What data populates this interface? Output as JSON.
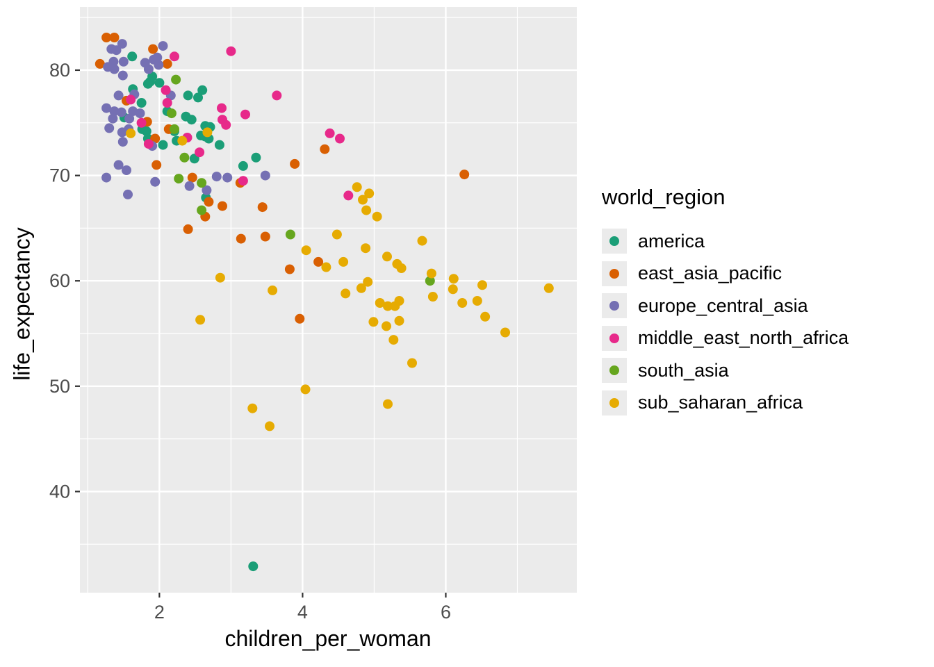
{
  "figure": {
    "background": "#FFFFFF",
    "panel_background": "#EBEBEB",
    "grid_color": "#FFFFFF",
    "tick_mark_color": "#333333",
    "tick_label_color": "#4D4D4D",
    "axis_title_color": "#000000",
    "legend_key_background": "#EBEBEB"
  },
  "chart_data": {
    "type": "scatter",
    "title": "",
    "xlabel": "children_per_woman",
    "ylabel": "life_expectancy",
    "x_ticks": [
      2,
      4,
      6
    ],
    "y_ticks": [
      80,
      70,
      60,
      50,
      40
    ],
    "x_minor_ticks": [
      1,
      3,
      5,
      7
    ],
    "y_minor_ticks": [
      85,
      75,
      65,
      55,
      45,
      35
    ],
    "xlim": [
      0.89,
      7.83
    ],
    "ylim": [
      30.4,
      86.0
    ],
    "grid": true,
    "point_radius_px": 7,
    "legend": {
      "title": "world_region",
      "position": "right"
    },
    "series": [
      {
        "name": "america",
        "color": "#1B9E77",
        "points": [
          [
            1.62,
            81.3
          ],
          [
            1.9,
            79.4
          ],
          [
            1.87,
            78.9
          ],
          [
            1.84,
            78.7
          ],
          [
            2.0,
            78.8
          ],
          [
            1.63,
            78.2
          ],
          [
            2.4,
            77.6
          ],
          [
            2.54,
            77.4
          ],
          [
            2.6,
            78.1
          ],
          [
            1.75,
            76.9
          ],
          [
            2.11,
            76.1
          ],
          [
            2.37,
            75.6
          ],
          [
            2.45,
            75.3
          ],
          [
            1.51,
            75.5
          ],
          [
            1.76,
            74.4
          ],
          [
            1.82,
            74.2
          ],
          [
            1.84,
            73.5
          ],
          [
            2.05,
            72.9
          ],
          [
            2.21,
            74.2
          ],
          [
            2.24,
            73.3
          ],
          [
            2.58,
            73.8
          ],
          [
            2.64,
            73.7
          ],
          [
            2.64,
            74.7
          ],
          [
            2.71,
            74.6
          ],
          [
            2.69,
            73.5
          ],
          [
            2.84,
            72.9
          ],
          [
            3.35,
            71.7
          ],
          [
            3.17,
            70.9
          ],
          [
            2.49,
            71.6
          ],
          [
            2.65,
            67.9
          ],
          [
            3.31,
            32.9
          ]
        ]
      },
      {
        "name": "east_asia_pacific",
        "color": "#D95F02",
        "points": [
          [
            1.26,
            83.1
          ],
          [
            1.37,
            83.1
          ],
          [
            1.17,
            80.6
          ],
          [
            1.91,
            82.0
          ],
          [
            2.11,
            80.6
          ],
          [
            1.54,
            77.1
          ],
          [
            1.83,
            75.1
          ],
          [
            2.13,
            74.4
          ],
          [
            1.94,
            73.5
          ],
          [
            1.96,
            71.0
          ],
          [
            2.46,
            69.8
          ],
          [
            3.13,
            69.3
          ],
          [
            2.69,
            67.5
          ],
          [
            2.88,
            67.1
          ],
          [
            3.44,
            67.0
          ],
          [
            2.64,
            66.1
          ],
          [
            2.4,
            64.9
          ],
          [
            3.14,
            64.0
          ],
          [
            3.48,
            64.2
          ],
          [
            3.82,
            61.1
          ],
          [
            4.22,
            61.8
          ],
          [
            3.89,
            71.1
          ],
          [
            4.31,
            72.5
          ],
          [
            6.26,
            70.1
          ],
          [
            3.96,
            56.4
          ]
        ]
      },
      {
        "name": "europe_central_asia",
        "color": "#7570B3",
        "points": [
          [
            1.48,
            82.5
          ],
          [
            1.33,
            82.0
          ],
          [
            1.4,
            81.9
          ],
          [
            2.05,
            82.3
          ],
          [
            1.97,
            81.2
          ],
          [
            1.92,
            81.0
          ],
          [
            1.36,
            80.8
          ],
          [
            1.5,
            80.8
          ],
          [
            1.28,
            80.3
          ],
          [
            1.37,
            80.1
          ],
          [
            1.8,
            80.7
          ],
          [
            1.85,
            80.1
          ],
          [
            1.99,
            80.5
          ],
          [
            1.49,
            79.5
          ],
          [
            1.43,
            77.6
          ],
          [
            1.65,
            77.7
          ],
          [
            2.16,
            77.6
          ],
          [
            1.26,
            76.4
          ],
          [
            1.37,
            76.1
          ],
          [
            1.47,
            76.0
          ],
          [
            1.63,
            76.1
          ],
          [
            1.35,
            75.4
          ],
          [
            1.58,
            75.4
          ],
          [
            1.73,
            75.9
          ],
          [
            1.3,
            74.5
          ],
          [
            1.48,
            74.1
          ],
          [
            1.57,
            74.4
          ],
          [
            1.49,
            73.2
          ],
          [
            1.9,
            72.8
          ],
          [
            1.43,
            71.0
          ],
          [
            1.54,
            70.5
          ],
          [
            1.26,
            69.8
          ],
          [
            1.94,
            69.4
          ],
          [
            2.42,
            69.0
          ],
          [
            2.66,
            68.6
          ],
          [
            1.56,
            68.2
          ],
          [
            2.8,
            69.9
          ],
          [
            2.95,
            69.8
          ],
          [
            3.48,
            70.0
          ]
        ]
      },
      {
        "name": "middle_east_north_africa",
        "color": "#E7298A",
        "points": [
          [
            2.21,
            81.3
          ],
          [
            3.0,
            81.8
          ],
          [
            2.09,
            78.1
          ],
          [
            1.6,
            77.2
          ],
          [
            2.11,
            76.9
          ],
          [
            3.64,
            77.6
          ],
          [
            2.87,
            76.4
          ],
          [
            3.2,
            75.8
          ],
          [
            2.88,
            75.3
          ],
          [
            2.93,
            74.8
          ],
          [
            2.39,
            73.6
          ],
          [
            2.56,
            72.2
          ],
          [
            1.75,
            75.0
          ],
          [
            4.38,
            74.0
          ],
          [
            4.52,
            73.5
          ],
          [
            3.17,
            69.5
          ],
          [
            1.85,
            73.0
          ],
          [
            4.64,
            68.1
          ]
        ]
      },
      {
        "name": "south_asia",
        "color": "#66A61E",
        "points": [
          [
            2.23,
            79.1
          ],
          [
            2.17,
            75.9
          ],
          [
            2.21,
            74.4
          ],
          [
            2.35,
            71.7
          ],
          [
            2.27,
            69.7
          ],
          [
            2.59,
            69.3
          ],
          [
            2.59,
            66.7
          ],
          [
            3.83,
            64.4
          ],
          [
            5.78,
            60.0
          ]
        ]
      },
      {
        "name": "sub_saharan_africa",
        "color": "#E6AB02",
        "points": [
          [
            1.6,
            74.0
          ],
          [
            2.32,
            73.3
          ],
          [
            2.67,
            74.1
          ],
          [
            2.85,
            60.3
          ],
          [
            2.57,
            56.3
          ],
          [
            4.76,
            68.9
          ],
          [
            4.93,
            68.3
          ],
          [
            4.84,
            67.7
          ],
          [
            4.89,
            66.7
          ],
          [
            5.04,
            66.1
          ],
          [
            4.48,
            64.4
          ],
          [
            4.05,
            62.9
          ],
          [
            4.33,
            61.3
          ],
          [
            4.57,
            61.8
          ],
          [
            4.88,
            63.1
          ],
          [
            5.67,
            63.8
          ],
          [
            5.18,
            62.3
          ],
          [
            5.32,
            61.6
          ],
          [
            5.38,
            61.2
          ],
          [
            4.91,
            59.9
          ],
          [
            4.82,
            59.3
          ],
          [
            4.6,
            58.8
          ],
          [
            5.8,
            60.7
          ],
          [
            6.11,
            60.2
          ],
          [
            6.1,
            59.2
          ],
          [
            6.51,
            59.6
          ],
          [
            7.44,
            59.3
          ],
          [
            5.82,
            58.5
          ],
          [
            5.08,
            57.9
          ],
          [
            5.19,
            57.6
          ],
          [
            5.29,
            57.6
          ],
          [
            5.35,
            58.1
          ],
          [
            6.23,
            57.9
          ],
          [
            6.44,
            58.1
          ],
          [
            4.99,
            56.1
          ],
          [
            5.17,
            55.7
          ],
          [
            5.35,
            56.2
          ],
          [
            6.55,
            56.6
          ],
          [
            6.83,
            55.1
          ],
          [
            5.27,
            54.4
          ],
          [
            5.53,
            52.2
          ],
          [
            5.19,
            48.3
          ],
          [
            3.58,
            59.1
          ],
          [
            4.04,
            49.7
          ],
          [
            3.3,
            47.9
          ],
          [
            3.54,
            46.2
          ]
        ]
      }
    ]
  }
}
